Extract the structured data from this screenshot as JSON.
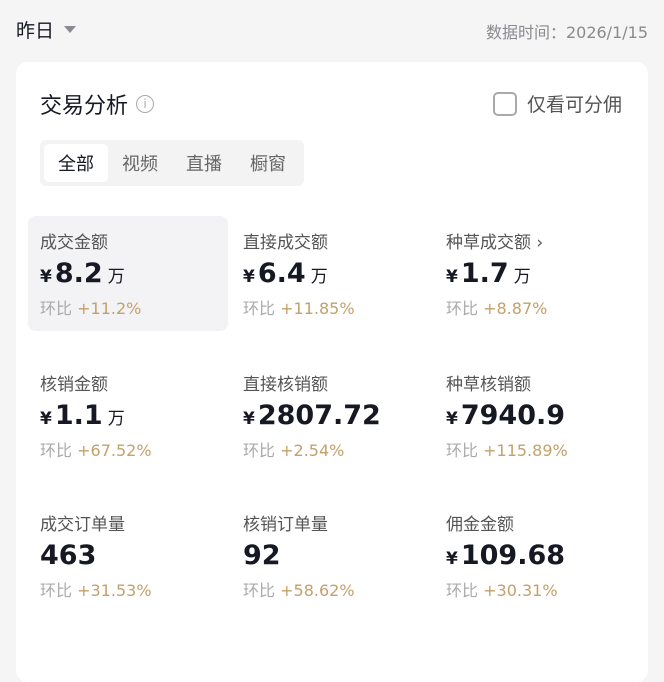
{
  "header": {
    "period": "昨日",
    "data_time": "数据时间：2026/1/15"
  },
  "card": {
    "title": "交易分析",
    "checkbox_label": "仅看可分佣",
    "checkbox_checked": false,
    "tabs": [
      "全部",
      "视频",
      "直播",
      "橱窗"
    ],
    "active_tab": "全部",
    "change_label": "环比",
    "metrics": [
      {
        "label": "成交金额",
        "currency": "¥",
        "value": "8.2",
        "unit": "万",
        "change": "+11.2%"
      },
      {
        "label": "直接成交额",
        "currency": "¥",
        "value": "6.4",
        "unit": "万",
        "change": "+11.85%"
      },
      {
        "label": "种草成交额 ›",
        "currency": "¥",
        "value": "1.7",
        "unit": "万",
        "change": "+8.87%"
      },
      {
        "label": "核销金额",
        "currency": "¥",
        "value": "1.1",
        "unit": "万",
        "change": "+67.52%"
      },
      {
        "label": "直接核销额",
        "currency": "¥",
        "value": "2807.72",
        "unit": "",
        "change": "+2.54%"
      },
      {
        "label": "种草核销额",
        "currency": "¥",
        "value": "7940.9",
        "unit": "",
        "change": "+115.89%"
      },
      {
        "label": "成交订单量",
        "currency": "",
        "value": "463",
        "unit": "",
        "change": "+31.53%"
      },
      {
        "label": "核销订单量",
        "currency": "",
        "value": "92",
        "unit": "",
        "change": "+58.62%"
      },
      {
        "label": "佣金金额",
        "currency": "¥",
        "value": "109.68",
        "unit": "",
        "change": "+30.31%"
      }
    ]
  },
  "colors": {
    "positive_change": "#c5a06a"
  }
}
